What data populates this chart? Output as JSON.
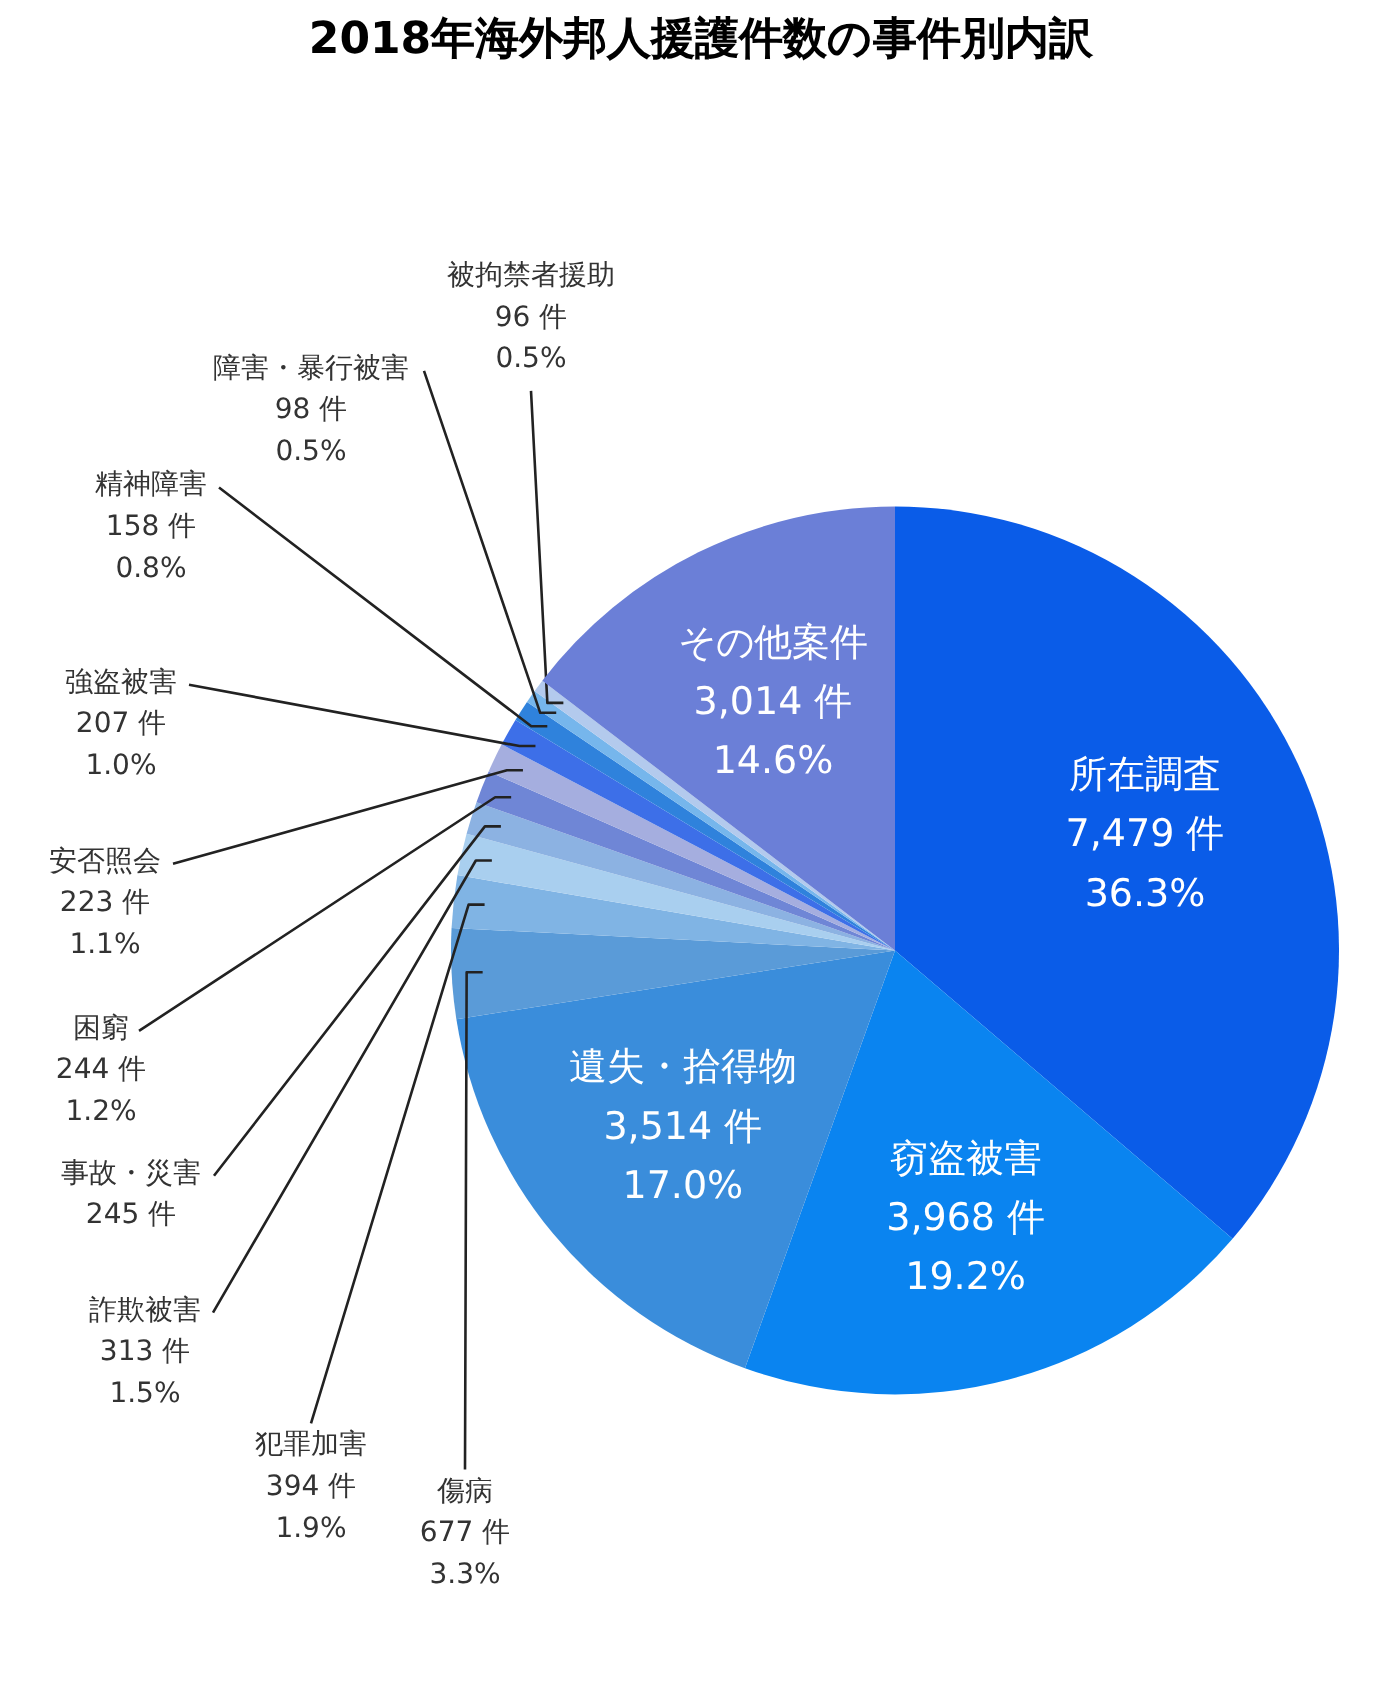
{
  "chart_data": {
    "type": "pie",
    "title": "2018年海外邦人援護件数の事件別内訳",
    "categories": [
      "所在調査",
      "窃盗被害",
      "遺失・拾得物",
      "傷病",
      "犯罪加害",
      "詐欺被害",
      "事故・災害",
      "困窮",
      "安否照会",
      "強盗被害",
      "精神障害",
      "障害・暴行被害",
      "被拘禁者援助",
      "その他案件"
    ],
    "values": [
      7479,
      3968,
      3514,
      677,
      394,
      313,
      245,
      244,
      223,
      207,
      158,
      98,
      96,
      3014
    ],
    "colors": [
      "#0a5ce8",
      "#0a84f0",
      "#3a8ddb",
      "#5a9bd8",
      "#80b4e4",
      "#a9cfef",
      "#8cb2e2",
      "#6f86d6",
      "#a5aedf",
      "#3d6fe8",
      "#2f82dc",
      "#76b6ec",
      "#b3caed",
      "#6b7fd7"
    ],
    "value_labels": [
      "7,479 件\n36.3%",
      "3,968 件\n19.2%",
      "3,514 件\n17.0%",
      "677 件\n3.3%",
      "394 件\n1.9%",
      "313 件\n1.5%",
      "245 件",
      "244 件\n1.2%",
      "223 件\n1.1%",
      "207 件\n1.0%",
      "158 件\n0.8%",
      "98 件\n0.5%",
      "96 件\n0.5%",
      "3,014 件\n14.6%"
    ]
  }
}
